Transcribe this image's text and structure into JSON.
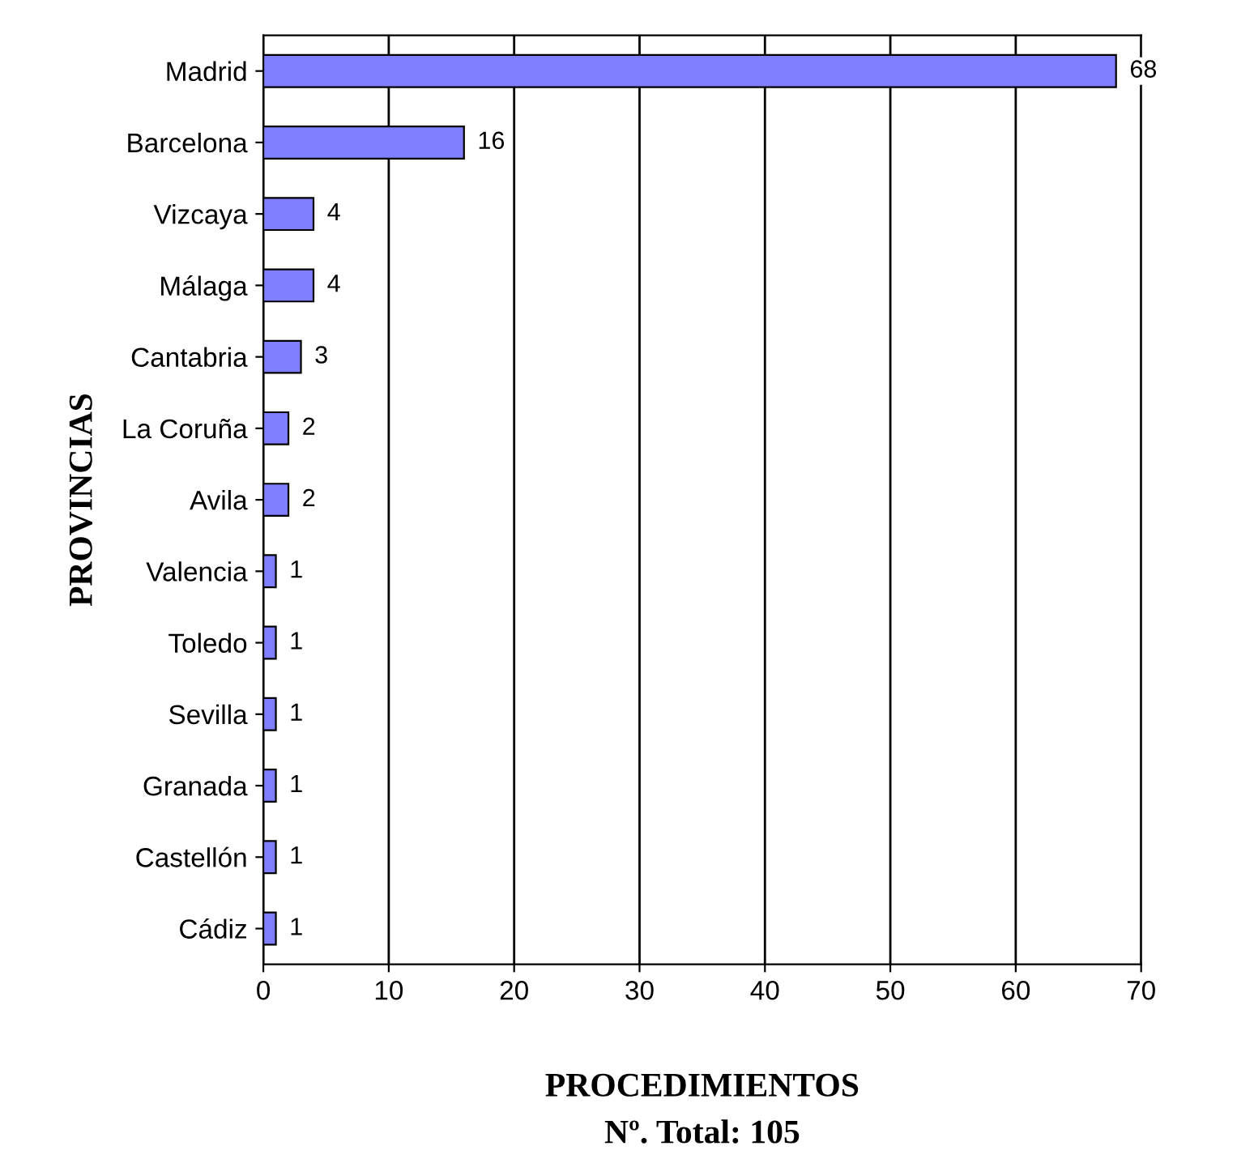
{
  "chart_data": {
    "type": "bar",
    "orientation": "horizontal",
    "categories": [
      "Madrid",
      "Barcelona",
      "Vizcaya",
      "Málaga",
      "Cantabria",
      "La Coruña",
      "Avila",
      "Valencia",
      "Toledo",
      "Sevilla",
      "Granada",
      "Castellón",
      "Cádiz"
    ],
    "values": [
      68,
      16,
      4,
      4,
      3,
      2,
      2,
      1,
      1,
      1,
      1,
      1,
      1
    ],
    "color": "#7f7fff",
    "xlim": [
      0,
      70
    ],
    "xticks": [
      0,
      10,
      20,
      30,
      40,
      50,
      60,
      70
    ],
    "grid": "x",
    "data_labels": true,
    "xlabel": "PROCEDIMIENTOS",
    "ylabel": "PROVINCIAS",
    "annotations": [
      "Nº. Total: 105"
    ]
  }
}
